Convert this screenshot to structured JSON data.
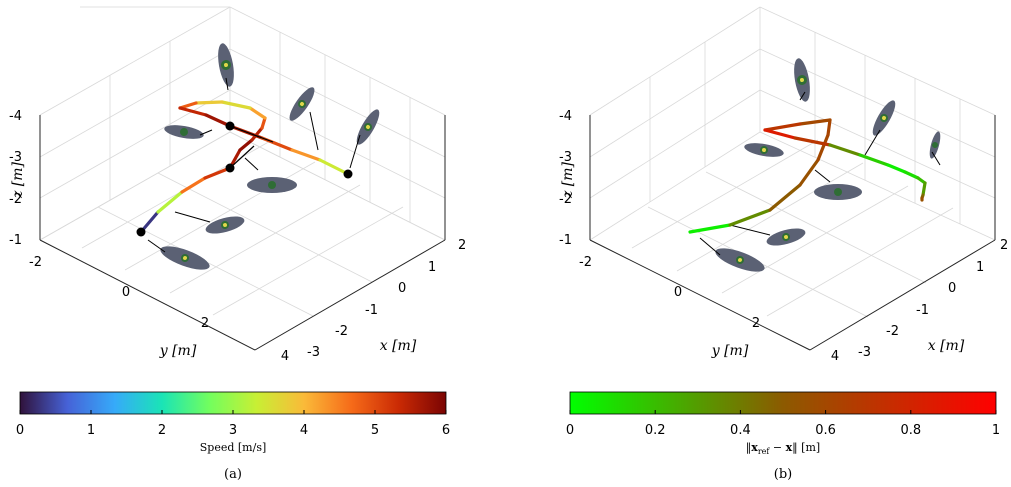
{
  "chart_data": [
    {
      "type": "line",
      "subtitle": "(a)",
      "xlabel": "x [m]",
      "ylabel": "y [m]",
      "zlabel": "z [m]",
      "x_ticks": [
        "2",
        "1",
        "0",
        "-1",
        "-2",
        "-3"
      ],
      "y_ticks": [
        "-2",
        "0",
        "2",
        "4"
      ],
      "z_ticks": [
        "-4",
        "-3",
        "-2",
        "-1"
      ],
      "grid": true,
      "colorbar": {
        "label": "Speed [m/s]",
        "ticks": [
          "0",
          "1",
          "2",
          "3",
          "4",
          "5",
          "6"
        ],
        "range": [
          0,
          6
        ],
        "colormap": [
          "#30123b",
          "#4662d7",
          "#36aaf9",
          "#1ae4b6",
          "#72fe5e",
          "#c8ef34",
          "#faba39",
          "#f66b19",
          "#ca2a04",
          "#7a0403"
        ]
      },
      "series": [
        {
          "values": [
            0.3,
            3.2,
            4.6,
            5.2,
            5.6,
            5.8,
            5.5,
            4.9,
            4.2,
            3.6,
            3.8,
            4.8,
            5.4,
            5.7,
            5.5,
            5.0,
            4.3,
            3.4,
            2.6
          ]
        }
      ],
      "waypoints": 4
    },
    {
      "type": "line",
      "subtitle": "(b)",
      "xlabel": "x [m]",
      "ylabel": "y [m]",
      "zlabel": "z [m]",
      "x_ticks": [
        "2",
        "1",
        "0",
        "-1",
        "-2",
        "-3"
      ],
      "y_ticks": [
        "-2",
        "0",
        "2",
        "4"
      ],
      "z_ticks": [
        "-4",
        "-3",
        "-2",
        "-1"
      ],
      "grid": true,
      "colorbar": {
        "label": "‖x_ref − x‖ [m]",
        "ticks": [
          "0",
          "0.2",
          "0.4",
          "0.6",
          "0.8",
          "1"
        ],
        "range": [
          0,
          1
        ],
        "colormap": [
          "#00ff00",
          "#8c5a00",
          "#ff0000"
        ]
      },
      "series": [
        {
          "values": [
            0.05,
            0.35,
            0.5,
            0.55,
            0.6,
            0.62,
            0.6,
            0.7,
            0.85,
            0.7,
            0.35,
            0.15,
            0.05,
            0.1,
            0.2,
            0.3,
            0.45,
            0.55,
            0.65
          ]
        }
      ]
    }
  ]
}
